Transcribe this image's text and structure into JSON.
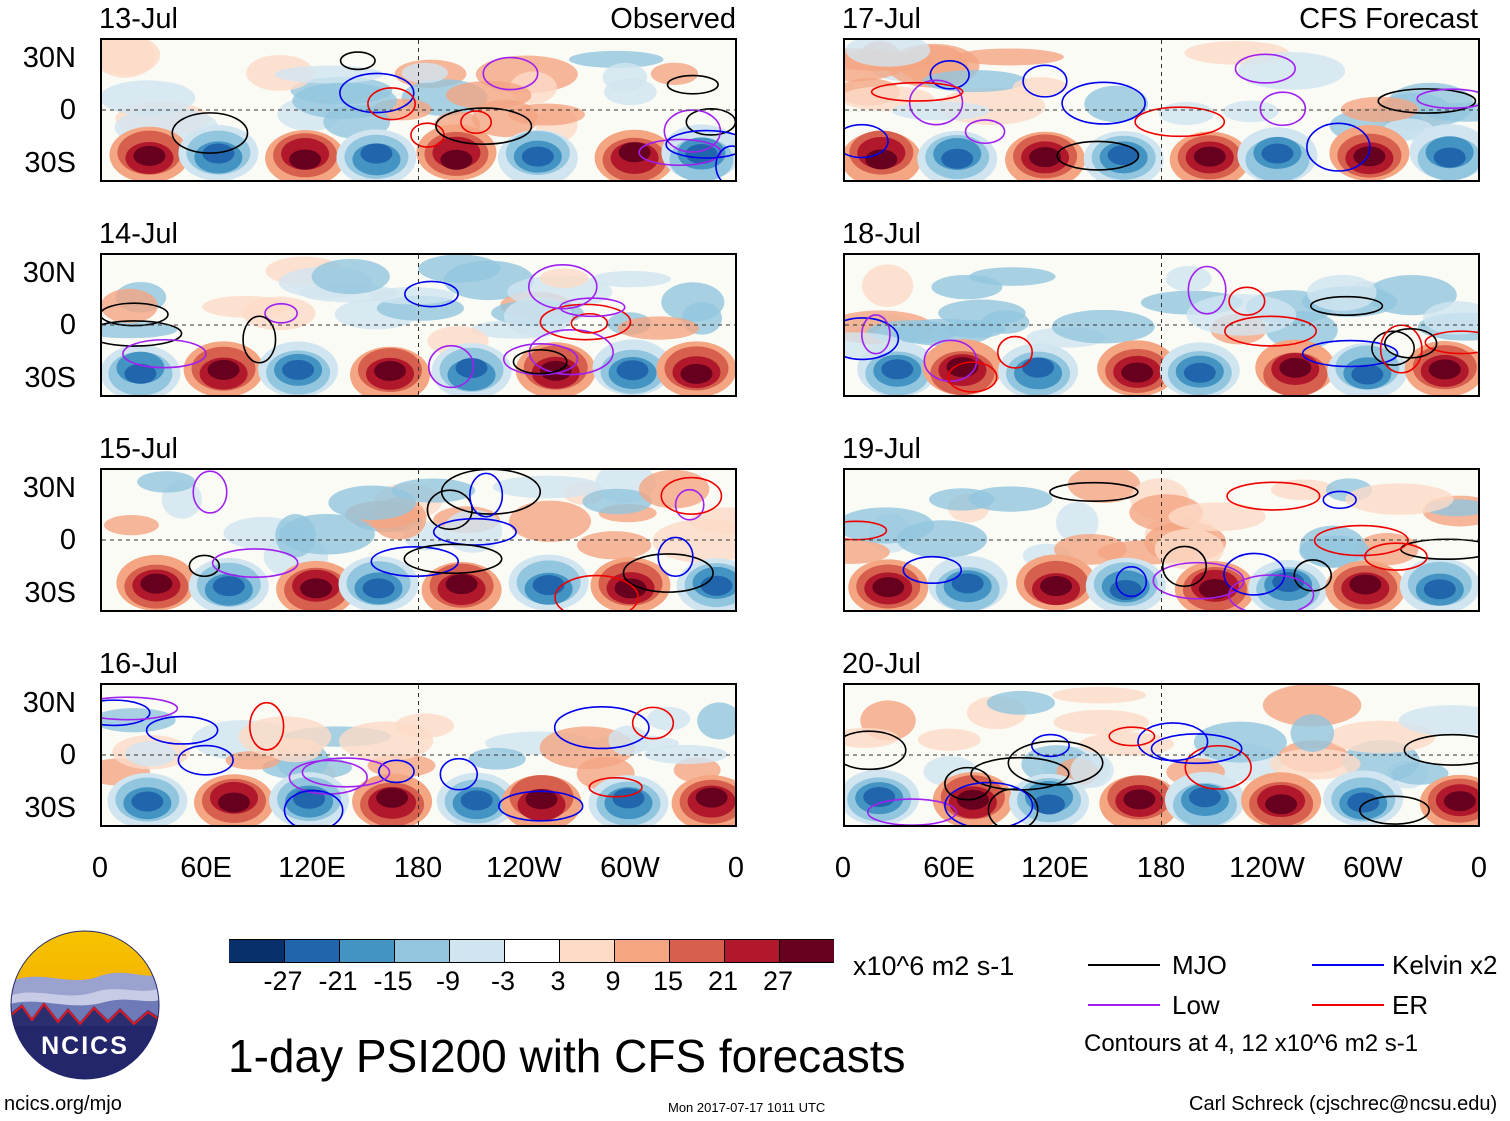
{
  "header": {
    "observed_label": "Observed",
    "forecast_label": "CFS Forecast"
  },
  "panels": {
    "observed": [
      {
        "date": "13-Jul"
      },
      {
        "date": "14-Jul"
      },
      {
        "date": "15-Jul"
      },
      {
        "date": "16-Jul"
      }
    ],
    "forecast": [
      {
        "date": "17-Jul"
      },
      {
        "date": "18-Jul"
      },
      {
        "date": "19-Jul"
      },
      {
        "date": "20-Jul"
      }
    ]
  },
  "axes": {
    "lat_ticks": [
      "30N",
      "0",
      "30S"
    ],
    "lon_ticks": [
      "0",
      "60E",
      "120E",
      "180",
      "120W",
      "60W",
      "0"
    ]
  },
  "colorbar": {
    "colors": [
      "#08306b",
      "#2166ac",
      "#4393c3",
      "#92c5de",
      "#d1e5f0",
      "#ffffff",
      "#fddbc7",
      "#f4a582",
      "#d6604d",
      "#b2182b",
      "#67001f"
    ],
    "labels": [
      "-27",
      "-21",
      "-15",
      "-9",
      "-3",
      "3",
      "9",
      "15",
      "21",
      "27"
    ],
    "units": "x10^6 m2 s-1"
  },
  "legend": {
    "items": [
      {
        "label": "MJO",
        "color": "#000000"
      },
      {
        "label": "Kelvin x2",
        "color": "#0000ee"
      },
      {
        "label": "Low",
        "color": "#a020f0"
      },
      {
        "label": "ER",
        "color": "#ee0000"
      }
    ],
    "contours_note": "Contours at 4, 12 x10^6 m2 s-1"
  },
  "title": "1-day PSI200 with CFS forecasts",
  "logo": {
    "text": "NCICS"
  },
  "footer": {
    "site": "ncics.org/mjo",
    "timestamp": "Mon 2017-07-17 1011 UTC",
    "author": "Carl Schreck (cjschrec@ncsu.edu)"
  }
}
